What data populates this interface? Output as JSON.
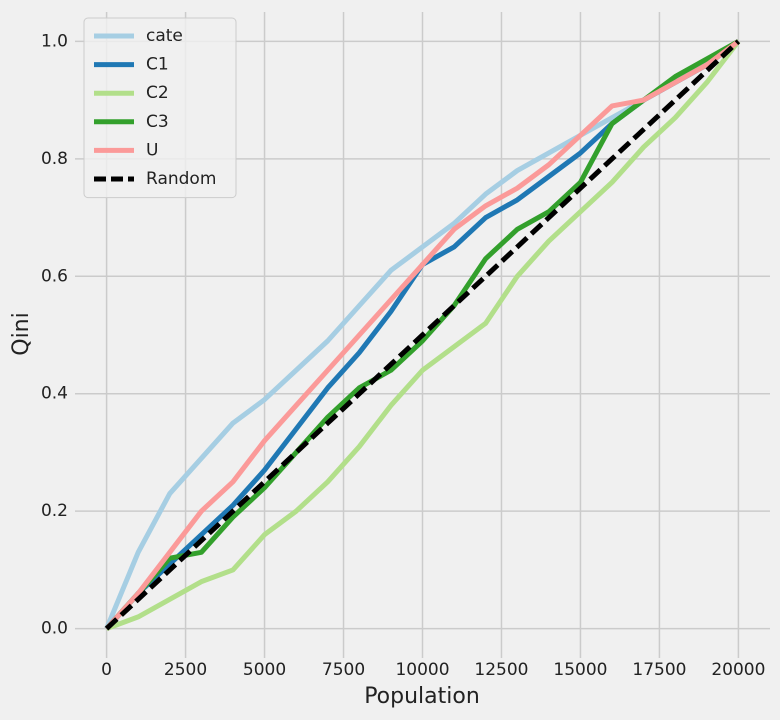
{
  "chart_data": {
    "type": "line",
    "xlabel": "Population",
    "ylabel": "Qini",
    "x": [
      0,
      1000,
      2000,
      3000,
      4000,
      5000,
      6000,
      7000,
      8000,
      9000,
      10000,
      11000,
      12000,
      13000,
      14000,
      15000,
      16000,
      17000,
      18000,
      19000,
      20000
    ],
    "series": [
      {
        "name": "cate",
        "color": "#a6cee3",
        "style": "solid",
        "values": [
          0,
          0.13,
          0.23,
          0.29,
          0.35,
          0.39,
          0.44,
          0.49,
          0.55,
          0.61,
          0.65,
          0.69,
          0.74,
          0.78,
          0.81,
          0.84,
          0.87,
          0.9,
          0.93,
          0.96,
          1.0
        ]
      },
      {
        "name": "C1",
        "color": "#1f78b4",
        "style": "solid",
        "values": [
          0,
          0.06,
          0.11,
          0.16,
          0.21,
          0.27,
          0.34,
          0.41,
          0.47,
          0.54,
          0.62,
          0.65,
          0.7,
          0.73,
          0.77,
          0.81,
          0.86,
          0.9,
          0.93,
          0.96,
          1.0
        ]
      },
      {
        "name": "C2",
        "color": "#b2df8a",
        "style": "solid",
        "values": [
          0,
          0.02,
          0.05,
          0.08,
          0.1,
          0.16,
          0.2,
          0.25,
          0.31,
          0.38,
          0.44,
          0.48,
          0.52,
          0.6,
          0.66,
          0.71,
          0.76,
          0.82,
          0.87,
          0.93,
          1.0
        ]
      },
      {
        "name": "C3",
        "color": "#33a02c",
        "style": "solid",
        "values": [
          0,
          0.06,
          0.12,
          0.13,
          0.19,
          0.24,
          0.3,
          0.36,
          0.41,
          0.44,
          0.49,
          0.55,
          0.63,
          0.68,
          0.71,
          0.76,
          0.86,
          0.9,
          0.94,
          0.97,
          1.0
        ]
      },
      {
        "name": "U",
        "color": "#fb9a99",
        "style": "solid",
        "values": [
          0,
          0.06,
          0.13,
          0.2,
          0.25,
          0.32,
          0.38,
          0.44,
          0.5,
          0.56,
          0.62,
          0.68,
          0.72,
          0.75,
          0.79,
          0.84,
          0.89,
          0.9,
          0.93,
          0.96,
          1.0
        ]
      },
      {
        "name": "Random",
        "color": "#000000",
        "style": "dashed",
        "values": [
          0,
          0.05,
          0.1,
          0.15,
          0.2,
          0.25,
          0.3,
          0.35,
          0.4,
          0.45,
          0.5,
          0.55,
          0.6,
          0.65,
          0.7,
          0.75,
          0.8,
          0.85,
          0.9,
          0.95,
          1.0
        ]
      }
    ],
    "xlim": [
      -1000,
      21000
    ],
    "ylim": [
      -0.05,
      1.05
    ],
    "xticks": [
      0,
      2500,
      5000,
      7500,
      10000,
      12500,
      15000,
      17500,
      20000
    ],
    "yticks": [
      {
        "value": 0,
        "label": "0.0"
      },
      0.2,
      0.4,
      0.6,
      0.8,
      {
        "value": 1,
        "label": "1.0"
      }
    ],
    "grid": true,
    "legend": "upper left"
  }
}
